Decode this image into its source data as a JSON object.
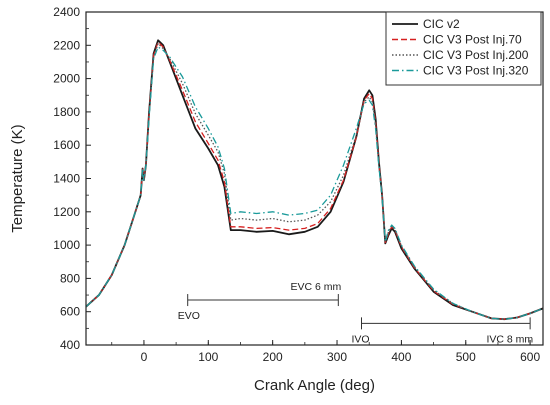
{
  "chart_data": {
    "type": "line",
    "title": "",
    "xlabel": "Crank Angle (deg)",
    "ylabel": "Temperature (K)",
    "xlim": [
      -90,
      620
    ],
    "ylim": [
      400,
      2400
    ],
    "xticks": [
      0,
      100,
      200,
      300,
      400,
      500,
      600
    ],
    "yticks": [
      400,
      600,
      800,
      1000,
      1200,
      1400,
      1600,
      1800,
      2000,
      2200,
      2400
    ],
    "grid": false,
    "legend_position": "top-right",
    "series": [
      {
        "name": "CIC v2",
        "color": "#1a1a1a",
        "dash": "solid",
        "points": [
          [
            -90,
            630
          ],
          [
            -70,
            700
          ],
          [
            -50,
            820
          ],
          [
            -30,
            1000
          ],
          [
            -15,
            1180
          ],
          [
            -5,
            1300
          ],
          [
            -2,
            1460
          ],
          [
            0,
            1390
          ],
          [
            3,
            1480
          ],
          [
            8,
            1800
          ],
          [
            15,
            2150
          ],
          [
            22,
            2230
          ],
          [
            30,
            2200
          ],
          [
            40,
            2100
          ],
          [
            60,
            1900
          ],
          [
            80,
            1700
          ],
          [
            100,
            1580
          ],
          [
            115,
            1480
          ],
          [
            125,
            1350
          ],
          [
            135,
            1090
          ],
          [
            150,
            1090
          ],
          [
            175,
            1080
          ],
          [
            200,
            1085
          ],
          [
            225,
            1065
          ],
          [
            250,
            1080
          ],
          [
            270,
            1110
          ],
          [
            290,
            1200
          ],
          [
            310,
            1380
          ],
          [
            330,
            1650
          ],
          [
            342,
            1880
          ],
          [
            350,
            1930
          ],
          [
            355,
            1900
          ],
          [
            360,
            1760
          ],
          [
            365,
            1500
          ],
          [
            370,
            1300
          ],
          [
            375,
            1010
          ],
          [
            380,
            1060
          ],
          [
            385,
            1100
          ],
          [
            390,
            1080
          ],
          [
            400,
            980
          ],
          [
            420,
            860
          ],
          [
            450,
            720
          ],
          [
            480,
            640
          ],
          [
            510,
            600
          ],
          [
            540,
            560
          ],
          [
            560,
            555
          ],
          [
            580,
            565
          ],
          [
            600,
            590
          ],
          [
            620,
            620
          ]
        ]
      },
      {
        "name": "CIC V3 Post Inj.70",
        "color": "#d62020",
        "dash": "dashed",
        "points": [
          [
            -90,
            630
          ],
          [
            -70,
            700
          ],
          [
            -50,
            820
          ],
          [
            -30,
            1000
          ],
          [
            -15,
            1180
          ],
          [
            -5,
            1300
          ],
          [
            -2,
            1460
          ],
          [
            0,
            1390
          ],
          [
            3,
            1480
          ],
          [
            8,
            1790
          ],
          [
            15,
            2140
          ],
          [
            22,
            2220
          ],
          [
            30,
            2190
          ],
          [
            40,
            2110
          ],
          [
            60,
            1930
          ],
          [
            80,
            1740
          ],
          [
            100,
            1610
          ],
          [
            115,
            1510
          ],
          [
            125,
            1380
          ],
          [
            135,
            1110
          ],
          [
            150,
            1110
          ],
          [
            175,
            1100
          ],
          [
            200,
            1105
          ],
          [
            225,
            1090
          ],
          [
            250,
            1100
          ],
          [
            270,
            1130
          ],
          [
            290,
            1220
          ],
          [
            310,
            1390
          ],
          [
            330,
            1650
          ],
          [
            342,
            1870
          ],
          [
            350,
            1910
          ],
          [
            355,
            1880
          ],
          [
            360,
            1740
          ],
          [
            365,
            1490
          ],
          [
            370,
            1300
          ],
          [
            375,
            1015
          ],
          [
            380,
            1070
          ],
          [
            385,
            1110
          ],
          [
            390,
            1090
          ],
          [
            400,
            990
          ],
          [
            420,
            865
          ],
          [
            450,
            725
          ],
          [
            480,
            645
          ],
          [
            510,
            600
          ],
          [
            540,
            560
          ],
          [
            560,
            555
          ],
          [
            580,
            565
          ],
          [
            600,
            590
          ],
          [
            620,
            620
          ]
        ]
      },
      {
        "name": "CIC V3 Post Inj.200",
        "color": "#555555",
        "dash": "dotted",
        "points": [
          [
            -90,
            630
          ],
          [
            -70,
            700
          ],
          [
            -50,
            820
          ],
          [
            -30,
            1000
          ],
          [
            -15,
            1180
          ],
          [
            -5,
            1300
          ],
          [
            -2,
            1460
          ],
          [
            0,
            1390
          ],
          [
            3,
            1480
          ],
          [
            8,
            1780
          ],
          [
            15,
            2130
          ],
          [
            22,
            2210
          ],
          [
            30,
            2180
          ],
          [
            40,
            2120
          ],
          [
            60,
            1970
          ],
          [
            80,
            1790
          ],
          [
            100,
            1660
          ],
          [
            115,
            1560
          ],
          [
            125,
            1430
          ],
          [
            135,
            1150
          ],
          [
            150,
            1160
          ],
          [
            175,
            1150
          ],
          [
            200,
            1160
          ],
          [
            225,
            1140
          ],
          [
            250,
            1150
          ],
          [
            270,
            1180
          ],
          [
            290,
            1260
          ],
          [
            310,
            1420
          ],
          [
            330,
            1660
          ],
          [
            342,
            1860
          ],
          [
            350,
            1890
          ],
          [
            355,
            1860
          ],
          [
            360,
            1720
          ],
          [
            365,
            1480
          ],
          [
            370,
            1290
          ],
          [
            375,
            1020
          ],
          [
            380,
            1080
          ],
          [
            385,
            1115
          ],
          [
            390,
            1095
          ],
          [
            400,
            995
          ],
          [
            420,
            870
          ],
          [
            450,
            730
          ],
          [
            480,
            650
          ],
          [
            510,
            600
          ],
          [
            540,
            560
          ],
          [
            560,
            555
          ],
          [
            580,
            565
          ],
          [
            600,
            590
          ],
          [
            620,
            620
          ]
        ]
      },
      {
        "name": "CIC V3 Post Inj.320",
        "color": "#1a9a9a",
        "dash": "dashdot",
        "points": [
          [
            -90,
            630
          ],
          [
            -70,
            700
          ],
          [
            -50,
            820
          ],
          [
            -30,
            1000
          ],
          [
            -15,
            1180
          ],
          [
            -5,
            1300
          ],
          [
            -2,
            1460
          ],
          [
            0,
            1390
          ],
          [
            3,
            1480
          ],
          [
            8,
            1770
          ],
          [
            15,
            2120
          ],
          [
            22,
            2190
          ],
          [
            30,
            2170
          ],
          [
            40,
            2130
          ],
          [
            60,
            2010
          ],
          [
            80,
            1830
          ],
          [
            100,
            1700
          ],
          [
            115,
            1590
          ],
          [
            125,
            1460
          ],
          [
            135,
            1190
          ],
          [
            150,
            1200
          ],
          [
            175,
            1190
          ],
          [
            200,
            1200
          ],
          [
            225,
            1180
          ],
          [
            250,
            1190
          ],
          [
            270,
            1210
          ],
          [
            290,
            1300
          ],
          [
            310,
            1480
          ],
          [
            330,
            1700
          ],
          [
            342,
            1850
          ],
          [
            350,
            1870
          ],
          [
            355,
            1840
          ],
          [
            360,
            1700
          ],
          [
            365,
            1470
          ],
          [
            370,
            1290
          ],
          [
            375,
            1020
          ],
          [
            380,
            1090
          ],
          [
            385,
            1120
          ],
          [
            390,
            1100
          ],
          [
            400,
            1000
          ],
          [
            420,
            875
          ],
          [
            450,
            735
          ],
          [
            480,
            650
          ],
          [
            510,
            600
          ],
          [
            540,
            560
          ],
          [
            560,
            555
          ],
          [
            580,
            565
          ],
          [
            600,
            590
          ],
          [
            620,
            620
          ]
        ]
      }
    ],
    "annotations": [
      {
        "from_label": "EVO",
        "to_label": "EVC 6 mm",
        "x_start": 68,
        "x_end": 302,
        "y": 670
      },
      {
        "from_label": "IVO",
        "to_label": "IVC 8 mm",
        "x_start": 338,
        "x_end": 600,
        "y": 530
      }
    ]
  }
}
